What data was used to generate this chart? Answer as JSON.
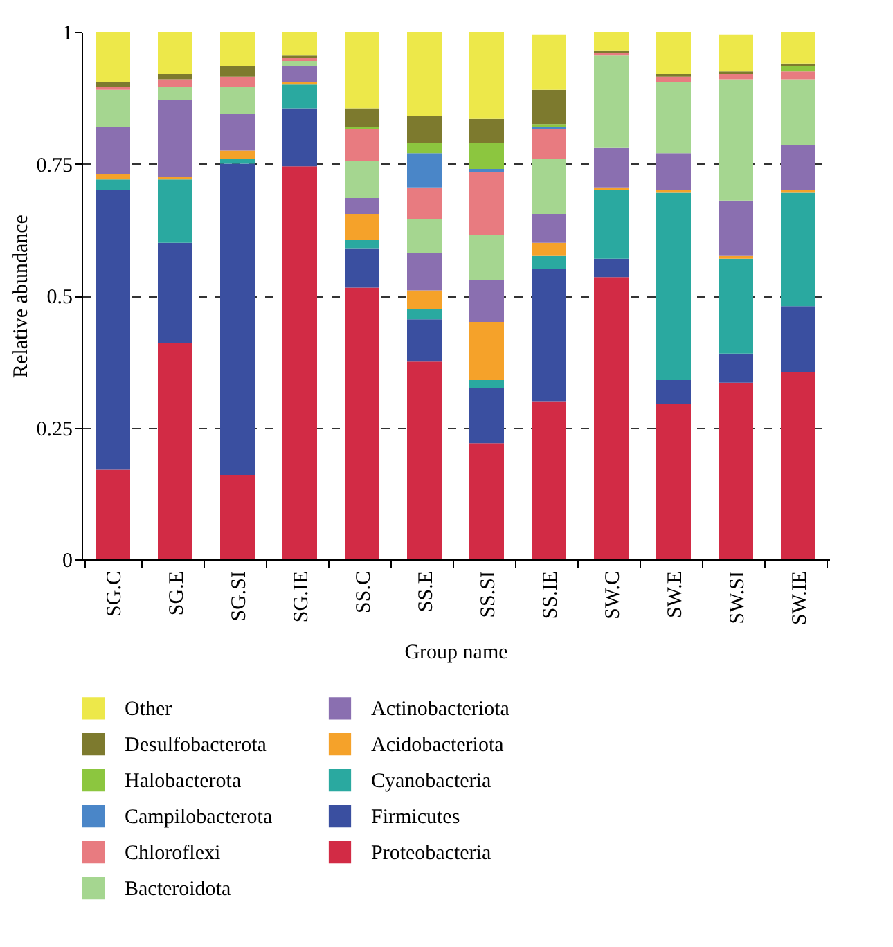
{
  "chart_data": {
    "type": "bar",
    "xlabel": "Group name",
    "ylabel": "Relative abundance",
    "categories": [
      "SG.C",
      "SG.E",
      "SG.SI",
      "SG.IE",
      "SS.C",
      "SS.E",
      "SS.SI",
      "SS.IE",
      "SW.C",
      "SW.E",
      "SW.SI",
      "SW.IE"
    ],
    "stacked": true,
    "ylim": [
      0,
      1
    ],
    "yticks": [
      0,
      0.25,
      0.5,
      0.75,
      1
    ],
    "grid": "y",
    "legend": "bottom",
    "series": [
      {
        "name": "Proteobacteria",
        "color": "#d22b45",
        "values": [
          0.17,
          0.41,
          0.16,
          0.745,
          0.515,
          0.375,
          0.22,
          0.3,
          0.535,
          0.295,
          0.335,
          0.355
        ]
      },
      {
        "name": "Firmicutes",
        "color": "#3a4fa0",
        "values": [
          0.53,
          0.19,
          0.59,
          0.11,
          0.075,
          0.08,
          0.105,
          0.25,
          0.035,
          0.045,
          0.055,
          0.125
        ]
      },
      {
        "name": "Cyanobacteria",
        "color": "#2aa9a0",
        "values": [
          0.02,
          0.12,
          0.01,
          0.045,
          0.015,
          0.02,
          0.015,
          0.025,
          0.13,
          0.355,
          0.18,
          0.215
        ]
      },
      {
        "name": "Acidobacteriota",
        "color": "#f5a22a",
        "values": [
          0.01,
          0.005,
          0.015,
          0.005,
          0.05,
          0.035,
          0.11,
          0.025,
          0.005,
          0.005,
          0.005,
          0.005
        ]
      },
      {
        "name": "Actinobacteriota",
        "color": "#8a6fb0",
        "values": [
          0.09,
          0.145,
          0.07,
          0.03,
          0.03,
          0.07,
          0.08,
          0.055,
          0.075,
          0.07,
          0.105,
          0.085
        ]
      },
      {
        "name": "Bacteroidota",
        "color": "#a5d690",
        "values": [
          0.07,
          0.025,
          0.05,
          0.01,
          0.07,
          0.065,
          0.085,
          0.105,
          0.175,
          0.135,
          0.23,
          0.125
        ]
      },
      {
        "name": "Chloroflexi",
        "color": "#e87b80",
        "values": [
          0.005,
          0.015,
          0.02,
          0.005,
          0.06,
          0.06,
          0.12,
          0.055,
          0.005,
          0.01,
          0.01,
          0.015
        ]
      },
      {
        "name": "Campilobacterota",
        "color": "#4a86c8",
        "values": [
          0,
          0,
          0,
          0,
          0,
          0.065,
          0.005,
          0.005,
          0,
          0,
          0,
          0
        ]
      },
      {
        "name": "Halobacterota",
        "color": "#8cc63f",
        "values": [
          0,
          0,
          0,
          0,
          0.005,
          0.02,
          0.05,
          0.005,
          0,
          0,
          0,
          0.01
        ]
      },
      {
        "name": "Desulfobacterota",
        "color": "#7d7a2e",
        "values": [
          0.01,
          0.01,
          0.02,
          0.005,
          0.035,
          0.05,
          0.045,
          0.065,
          0.005,
          0.005,
          0.005,
          0.005
        ]
      },
      {
        "name": "Other",
        "color": "#ede84a",
        "values": [
          0.095,
          0.08,
          0.065,
          0.045,
          0.145,
          0.16,
          0.165,
          0.105,
          0.035,
          0.08,
          0.07,
          0.06
        ]
      }
    ]
  }
}
